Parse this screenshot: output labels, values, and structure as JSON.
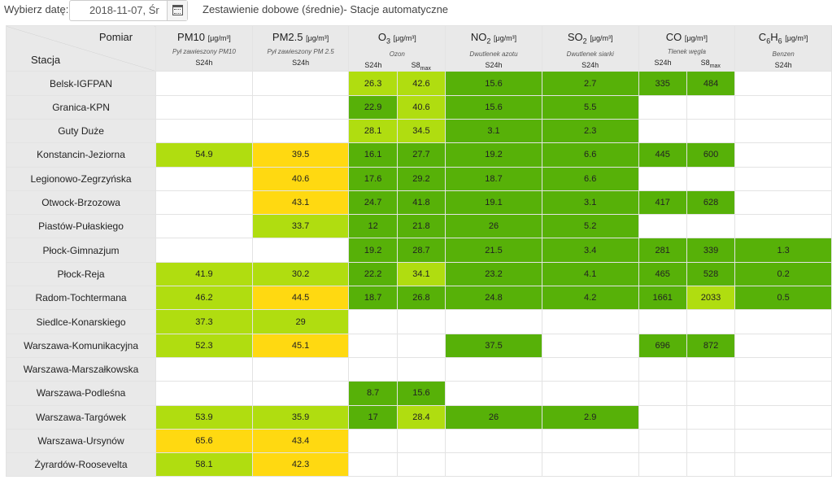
{
  "header": {
    "date_label": "Wybierz datę:",
    "date_value": "2018-11-07, Śr",
    "title": "Zestawienie dobowe (średnie)- Stacje automatyczne",
    "calendar_icon": "calendar-icon"
  },
  "table_head": {
    "pomiar": "Pomiar",
    "stacja": "Stacja",
    "pm10": {
      "name": "PM10",
      "unit": "[μg/m³]",
      "desc": "Pył zawieszony PM10",
      "sub1": "S24h"
    },
    "pm25": {
      "name": "PM2.5",
      "unit": "[μg/m³]",
      "desc": "Pył zawieszony PM 2.5",
      "sub1": "S24h"
    },
    "o3": {
      "name": "O",
      "sub": "3",
      "unit": "[μg/m³]",
      "desc": "Ozon",
      "sub1": "S24h",
      "sub2": "S8",
      "sub2_sub": "max"
    },
    "no2": {
      "name": "NO",
      "sub": "2",
      "unit": "[μg/m³]",
      "desc": "Dwutlenek azotu",
      "sub1": "S24h"
    },
    "so2": {
      "name": "SO",
      "sub": "2",
      "unit": "[μg/m³]",
      "desc": "Dwutlenek siarki",
      "sub1": "S24h"
    },
    "co": {
      "name": "CO",
      "unit": "[μg/m³]",
      "desc": "Tlenek węgla",
      "sub1": "S24h",
      "sub2": "S8",
      "sub2_sub": "max"
    },
    "c6h6": {
      "name": "C",
      "sub": "6",
      "name2": "H",
      "sub_b": "6",
      "unit": "[μg/m³]",
      "desc": "Benzen",
      "sub1": "S24h"
    }
  },
  "colors": {
    "g0": "#ffffff",
    "g1": "#57b108",
    "g2": "#b0dd10",
    "g3": "#ffd911"
  },
  "rows": [
    {
      "station": "Belsk-IGFPAN",
      "cells": [
        [
          "",
          0
        ],
        [
          "",
          0
        ],
        [
          "26.3",
          2
        ],
        [
          "42.6",
          2
        ],
        [
          "15.6",
          1
        ],
        [
          "2.7",
          1
        ],
        [
          "335",
          1
        ],
        [
          "484",
          1
        ],
        [
          "",
          0
        ]
      ]
    },
    {
      "station": "Granica-KPN",
      "cells": [
        [
          "",
          0
        ],
        [
          "",
          0
        ],
        [
          "22.9",
          1
        ],
        [
          "40.6",
          2
        ],
        [
          "15.6",
          1
        ],
        [
          "5.5",
          1
        ],
        [
          "",
          0
        ],
        [
          "",
          0
        ],
        [
          "",
          0
        ]
      ]
    },
    {
      "station": "Guty Duże",
      "cells": [
        [
          "",
          0
        ],
        [
          "",
          0
        ],
        [
          "28.1",
          2
        ],
        [
          "34.5",
          2
        ],
        [
          "3.1",
          1
        ],
        [
          "2.3",
          1
        ],
        [
          "",
          0
        ],
        [
          "",
          0
        ],
        [
          "",
          0
        ]
      ]
    },
    {
      "station": "Konstancin-Jeziorna",
      "cells": [
        [
          "54.9",
          2
        ],
        [
          "39.5",
          3
        ],
        [
          "16.1",
          1
        ],
        [
          "27.7",
          1
        ],
        [
          "19.2",
          1
        ],
        [
          "6.6",
          1
        ],
        [
          "445",
          1
        ],
        [
          "600",
          1
        ],
        [
          "",
          0
        ]
      ]
    },
    {
      "station": "Legionowo-Zegrzyńska",
      "cells": [
        [
          "",
          0
        ],
        [
          "40.6",
          3
        ],
        [
          "17.6",
          1
        ],
        [
          "29.2",
          1
        ],
        [
          "18.7",
          1
        ],
        [
          "6.6",
          1
        ],
        [
          "",
          0
        ],
        [
          "",
          0
        ],
        [
          "",
          0
        ]
      ]
    },
    {
      "station": "Otwock-Brzozowa",
      "cells": [
        [
          "",
          0
        ],
        [
          "43.1",
          3
        ],
        [
          "24.7",
          1
        ],
        [
          "41.8",
          1
        ],
        [
          "19.1",
          1
        ],
        [
          "3.1",
          1
        ],
        [
          "417",
          1
        ],
        [
          "628",
          1
        ],
        [
          "",
          0
        ]
      ]
    },
    {
      "station": "Piastów-Pułaskiego",
      "cells": [
        [
          "",
          0
        ],
        [
          "33.7",
          2
        ],
        [
          "12",
          1
        ],
        [
          "21.8",
          1
        ],
        [
          "26",
          1
        ],
        [
          "5.2",
          1
        ],
        [
          "",
          0
        ],
        [
          "",
          0
        ],
        [
          "",
          0
        ]
      ]
    },
    {
      "station": "Płock-Gimnazjum",
      "cells": [
        [
          "",
          0
        ],
        [
          "",
          0
        ],
        [
          "19.2",
          1
        ],
        [
          "28.7",
          1
        ],
        [
          "21.5",
          1
        ],
        [
          "3.4",
          1
        ],
        [
          "281",
          1
        ],
        [
          "339",
          1
        ],
        [
          "1.3",
          1
        ]
      ]
    },
    {
      "station": "Płock-Reja",
      "cells": [
        [
          "41.9",
          2
        ],
        [
          "30.2",
          2
        ],
        [
          "22.2",
          1
        ],
        [
          "34.1",
          2
        ],
        [
          "23.2",
          1
        ],
        [
          "4.1",
          1
        ],
        [
          "465",
          1
        ],
        [
          "528",
          1
        ],
        [
          "0.2",
          1
        ]
      ]
    },
    {
      "station": "Radom-Tochtermana",
      "cells": [
        [
          "46.2",
          2
        ],
        [
          "44.5",
          3
        ],
        [
          "18.7",
          1
        ],
        [
          "26.8",
          1
        ],
        [
          "24.8",
          1
        ],
        [
          "4.2",
          1
        ],
        [
          "1661",
          1
        ],
        [
          "2033",
          2
        ],
        [
          "0.5",
          1
        ]
      ]
    },
    {
      "station": "Siedlce-Konarskiego",
      "cells": [
        [
          "37.3",
          2
        ],
        [
          "29",
          2
        ],
        [
          "",
          0
        ],
        [
          "",
          0
        ],
        [
          "",
          0
        ],
        [
          "",
          0
        ],
        [
          "",
          0
        ],
        [
          "",
          0
        ],
        [
          "",
          0
        ]
      ]
    },
    {
      "station": "Warszawa-Komunikacyjna",
      "cells": [
        [
          "52.3",
          2
        ],
        [
          "45.1",
          3
        ],
        [
          "",
          0
        ],
        [
          "",
          0
        ],
        [
          "37.5",
          1
        ],
        [
          "",
          0
        ],
        [
          "696",
          1
        ],
        [
          "872",
          1
        ],
        [
          "",
          0
        ]
      ]
    },
    {
      "station": "Warszawa-Marszałkowska",
      "cells": [
        [
          "",
          0
        ],
        [
          "",
          0
        ],
        [
          "",
          0
        ],
        [
          "",
          0
        ],
        [
          "",
          0
        ],
        [
          "",
          0
        ],
        [
          "",
          0
        ],
        [
          "",
          0
        ],
        [
          "",
          0
        ]
      ]
    },
    {
      "station": "Warszawa-Podleśna",
      "cells": [
        [
          "",
          0
        ],
        [
          "",
          0
        ],
        [
          "8.7",
          1
        ],
        [
          "15.6",
          1
        ],
        [
          "",
          0
        ],
        [
          "",
          0
        ],
        [
          "",
          0
        ],
        [
          "",
          0
        ],
        [
          "",
          0
        ]
      ]
    },
    {
      "station": "Warszawa-Targówek",
      "cells": [
        [
          "53.9",
          2
        ],
        [
          "35.9",
          2
        ],
        [
          "17",
          1
        ],
        [
          "28.4",
          2
        ],
        [
          "26",
          1
        ],
        [
          "2.9",
          1
        ],
        [
          "",
          0
        ],
        [
          "",
          0
        ],
        [
          "",
          0
        ]
      ]
    },
    {
      "station": "Warszawa-Ursynów",
      "cells": [
        [
          "65.6",
          3
        ],
        [
          "43.4",
          3
        ],
        [
          "",
          0
        ],
        [
          "",
          0
        ],
        [
          "",
          0
        ],
        [
          "",
          0
        ],
        [
          "",
          0
        ],
        [
          "",
          0
        ],
        [
          "",
          0
        ]
      ]
    },
    {
      "station": "Żyrardów-Roosevelta",
      "cells": [
        [
          "58.1",
          2
        ],
        [
          "42.3",
          3
        ],
        [
          "",
          0
        ],
        [
          "",
          0
        ],
        [
          "",
          0
        ],
        [
          "",
          0
        ],
        [
          "",
          0
        ],
        [
          "",
          0
        ],
        [
          "",
          0
        ]
      ]
    }
  ]
}
